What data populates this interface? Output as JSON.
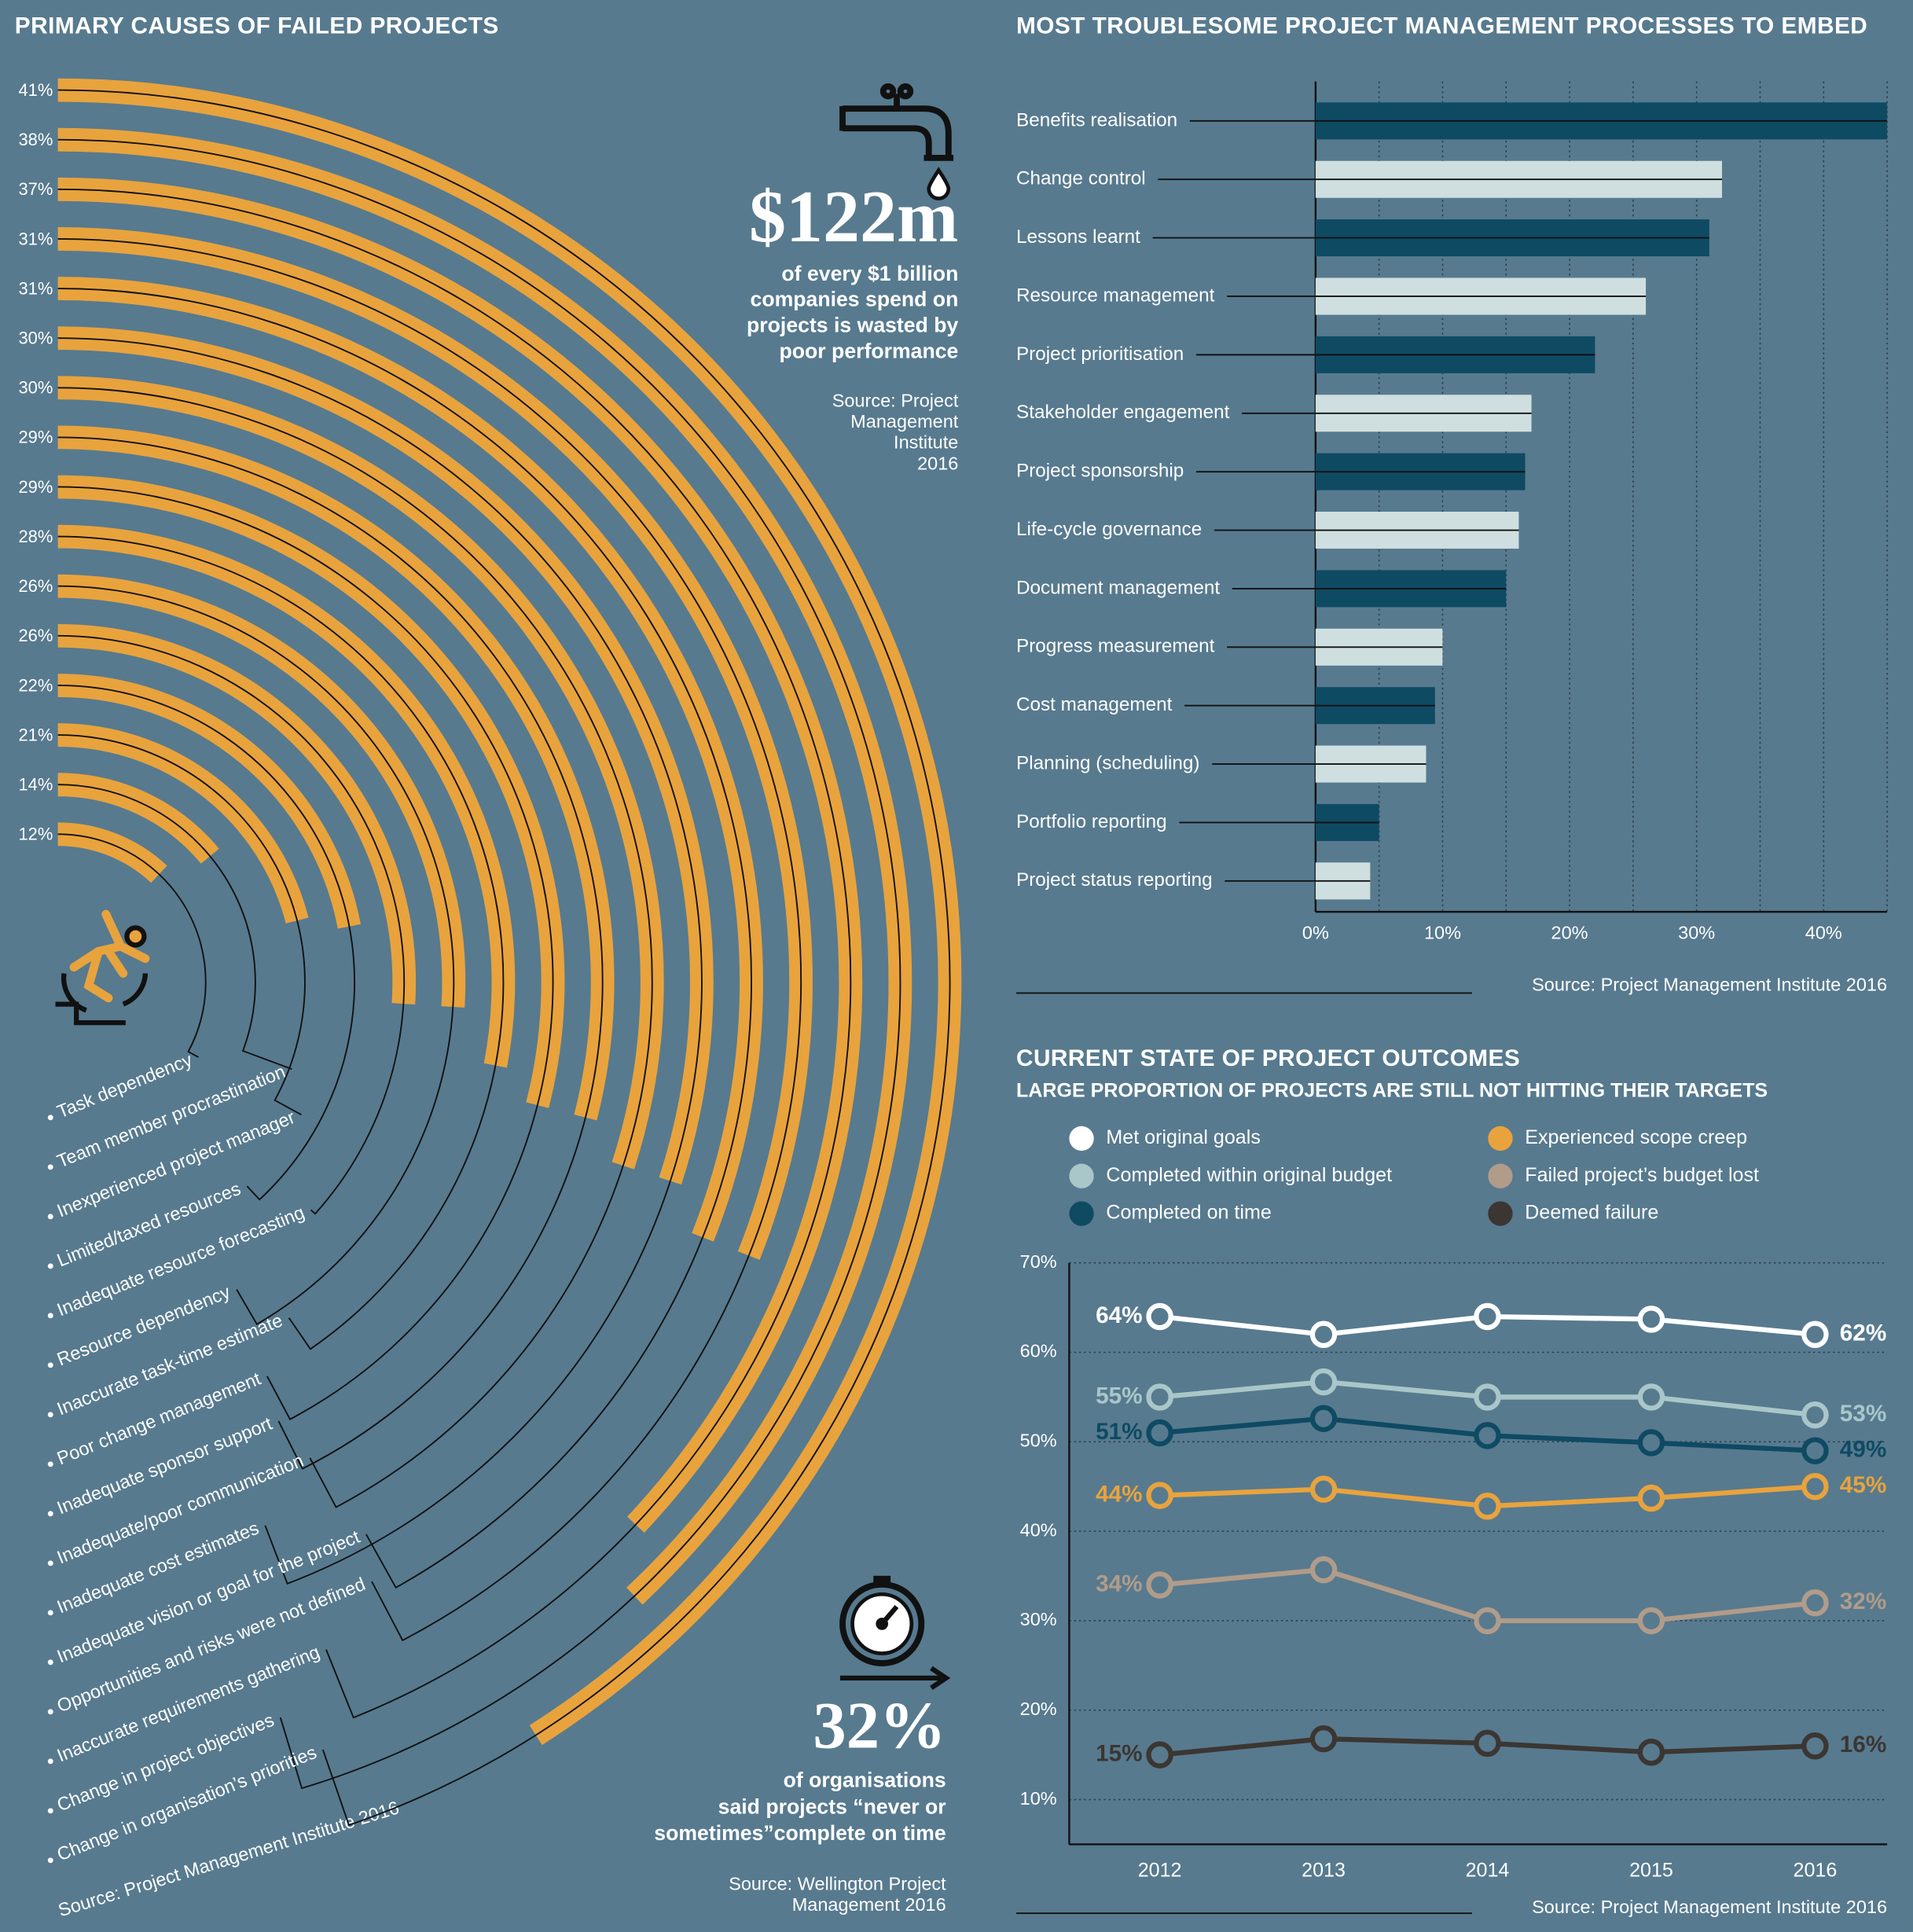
{
  "chart_data": [
    {
      "type": "radial-bar",
      "title": "PRIMARY CAUSES OF FAILED PROJECTS",
      "source": "Source: Project Management Institute 2016",
      "categories": [
        "Task dependency",
        "Team member procrastination",
        "Inexperienced project manager",
        "Limited/taxed resources",
        "Inadequate resource forecasting",
        "Resource dependency",
        "Inaccurate task-time estimate",
        "Poor change management",
        "Inadequate sponsor support",
        "Inadequate/poor communication",
        "Inadequate cost estimates",
        "Inadequate vision or goal for the project",
        "Opportunities and risks were not defined",
        "Inaccurate requirements gathering",
        "Change in project objectives",
        "Change in organisation’s priorities"
      ],
      "values": [
        12,
        14,
        21,
        22,
        26,
        26,
        28,
        29,
        29,
        30,
        30,
        31,
        31,
        37,
        38,
        41
      ],
      "value_labels": [
        "12%",
        "14%",
        "21%",
        "22%",
        "26%",
        "26%",
        "28%",
        "29%",
        "29%",
        "30%",
        "30%",
        "31%",
        "31%",
        "37%",
        "38%",
        "41%"
      ],
      "ylim": [
        0,
        100
      ],
      "color": "#e8a33d"
    },
    {
      "type": "hbar",
      "title": "MOST TROUBLESOME PROJECT MANAGEMENT PROCESSES TO EMBED",
      "source": "Source: Project Management Institute 2016",
      "categories": [
        "Benefits realisation",
        "Change control",
        "Lessons learnt",
        "Resource management",
        "Project prioritisation",
        "Stakeholder engagement",
        "Project sponsorship",
        "Life-cycle governance",
        "Document management",
        "Progress measurement",
        "Cost management",
        "Planning (scheduling)",
        "Portfolio reporting",
        "Project status reporting"
      ],
      "values": [
        45,
        32,
        31,
        26,
        22,
        17,
        16.5,
        16,
        15,
        10,
        9.4,
        8.7,
        5,
        4.3
      ],
      "colors": [
        "#0f4a63",
        "#cfdfe0",
        "#0f4a63",
        "#cfdfe0",
        "#0f4a63",
        "#cfdfe0",
        "#0f4a63",
        "#cfdfe0",
        "#0f4a63",
        "#cfdfe0",
        "#0f4a63",
        "#cfdfe0",
        "#0f4a63",
        "#cfdfe0"
      ],
      "xlim": [
        0,
        45
      ],
      "xticks": [
        {
          "value": 0,
          "label": "0%"
        },
        {
          "value": 10,
          "label": "10%"
        },
        {
          "value": 20,
          "label": "20%"
        },
        {
          "value": 30,
          "label": "30%"
        },
        {
          "value": 40,
          "label": "40%"
        }
      ],
      "xgrid": [
        5,
        10,
        15,
        20,
        25,
        30,
        35,
        40,
        45
      ]
    },
    {
      "type": "line",
      "title": "CURRENT STATE OF PROJECT OUTCOMES",
      "subtitle": "LARGE PROPORTION OF PROJECTS ARE STILL NOT HITTING THEIR TARGETS",
      "source": "Source: Project Management Institute 2016",
      "categories": [
        "2012",
        "2013",
        "2014",
        "2015",
        "2016"
      ],
      "series": [
        {
          "name": "Met original goals",
          "color": "#ffffff",
          "values": [
            64,
            62,
            64,
            63.7,
            62
          ],
          "value_labels": [
            "64%",
            null,
            null,
            null,
            "62%"
          ]
        },
        {
          "name": "Completed within original budget",
          "color": "#a9c7c9",
          "values": [
            55,
            56.7,
            55,
            55,
            53
          ],
          "value_labels": [
            "55%",
            null,
            null,
            null,
            "53%"
          ]
        },
        {
          "name": "Completed on time",
          "color": "#0f4a63",
          "values": [
            51,
            52.6,
            50.7,
            49.9,
            49
          ],
          "value_labels": [
            "51%",
            null,
            null,
            null,
            "49%"
          ]
        },
        {
          "name": "Experienced scope creep",
          "color": "#e8a33d",
          "values": [
            44,
            44.7,
            42.8,
            43.7,
            45
          ],
          "value_labels": [
            "44%",
            null,
            null,
            null,
            "45%"
          ]
        },
        {
          "name": "Failed project’s budget lost",
          "color": "#b19c8a",
          "values": [
            34,
            35.7,
            30,
            30,
            32
          ],
          "value_labels": [
            "34%",
            null,
            null,
            null,
            "32%"
          ]
        },
        {
          "name": "Deemed failure",
          "color": "#3b3632",
          "values": [
            15,
            16.8,
            16.3,
            15.3,
            16
          ],
          "value_labels": [
            "15%",
            null,
            null,
            null,
            "16%"
          ]
        }
      ],
      "ylim": [
        5,
        70
      ],
      "yticks": [
        {
          "value": 10,
          "label": "10%"
        },
        {
          "value": 20,
          "label": "20%"
        },
        {
          "value": 30,
          "label": "30%"
        },
        {
          "value": 40,
          "label": "40%"
        },
        {
          "value": 50,
          "label": "50%"
        },
        {
          "value": 60,
          "label": "60%"
        },
        {
          "value": 70,
          "label": "70%"
        }
      ],
      "grid": true
    }
  ],
  "callouts": [
    {
      "figure": "$122m",
      "lines": [
        "of every $1 billion",
        "companies spend on",
        "projects is wasted by",
        "poor performance"
      ],
      "source": [
        "Source: Project",
        "Management",
        "Institute",
        "2016"
      ]
    },
    {
      "figure": "32%",
      "lines": [
        "of organisations",
        "said projects “never or",
        "sometimes”complete on time"
      ],
      "source": [
        "Source: Wellington Project",
        "Management 2016"
      ]
    }
  ]
}
